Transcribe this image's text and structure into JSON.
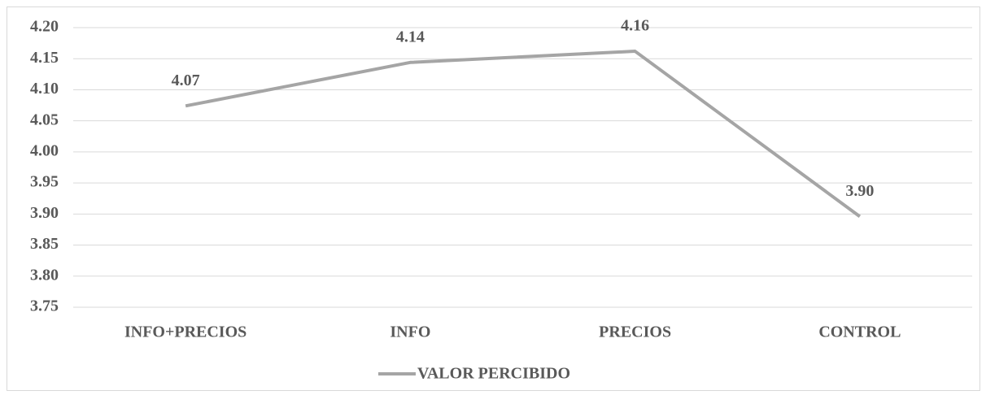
{
  "chart_data": {
    "type": "line",
    "categories": [
      "INFO+PRECIOS",
      "INFO",
      "PRECIOS",
      "CONTROL"
    ],
    "series": [
      {
        "name": "VALOR PERCIBIDO",
        "color": "#a5a5a5",
        "values": [
          4.074,
          4.144,
          4.162,
          3.896
        ],
        "value_labels": [
          "4.07",
          "4.14",
          "4.16",
          "3.90"
        ]
      }
    ],
    "ylim": [
      3.75,
      4.2
    ],
    "yticks": [
      {
        "value": 3.75,
        "label": "3.75"
      },
      {
        "value": 3.8,
        "label": "3.80"
      },
      {
        "value": 3.85,
        "label": "3.85"
      },
      {
        "value": 3.9,
        "label": "3.90"
      },
      {
        "value": 3.95,
        "label": "3.95"
      },
      {
        "value": 4.0,
        "label": "4.00"
      },
      {
        "value": 4.05,
        "label": "4.05"
      },
      {
        "value": 4.1,
        "label": "4.10"
      },
      {
        "value": 4.15,
        "label": "4.15"
      },
      {
        "value": 4.2,
        "label": "4.20"
      }
    ],
    "grid": true,
    "legend": "bottom"
  }
}
